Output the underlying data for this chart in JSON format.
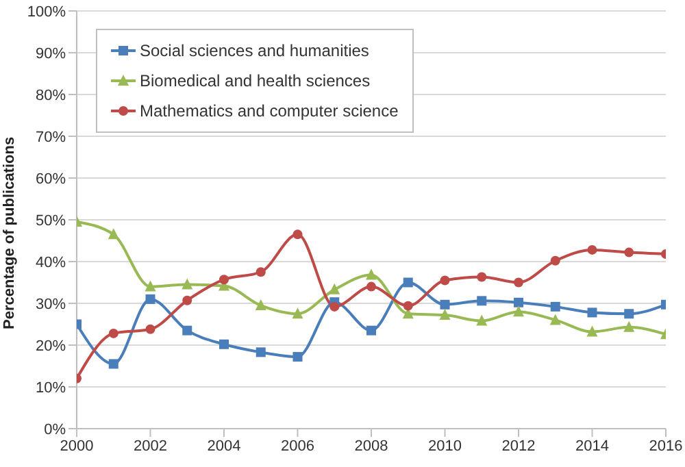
{
  "chart_data": {
    "type": "line",
    "ylabel": "Percentage of publications",
    "x": [
      2000,
      2001,
      2002,
      2003,
      2004,
      2005,
      2006,
      2007,
      2008,
      2009,
      2010,
      2011,
      2012,
      2013,
      2014,
      2015,
      2016
    ],
    "series": [
      {
        "name": "Social sciences and humanities",
        "color": "#4a7ebb",
        "marker": "square",
        "values": [
          25,
          15.5,
          31,
          23.5,
          20.2,
          18.3,
          17.2,
          30.3,
          23.5,
          35,
          29.7,
          30.6,
          30.2,
          29.2,
          27.8,
          27.5,
          29.7
        ]
      },
      {
        "name": "Biomedical and health sciences",
        "color": "#98b954",
        "marker": "triangle",
        "values": [
          49.5,
          46.5,
          34,
          34.5,
          34.2,
          29.5,
          27.5,
          33.3,
          36.8,
          27.5,
          27.2,
          25.8,
          28,
          26,
          23.2,
          24.3,
          22.6
        ]
      },
      {
        "name": "Mathematics and computer science",
        "color": "#be4b48",
        "marker": "circle",
        "values": [
          12,
          22.8,
          23.8,
          30.7,
          35.7,
          37.5,
          46.5,
          29.2,
          34,
          29.4,
          35.5,
          36.3,
          35,
          40.2,
          42.8,
          42.2,
          41.8
        ]
      }
    ],
    "xlim": [
      2000,
      2016
    ],
    "xticks": [
      2000,
      2002,
      2004,
      2006,
      2008,
      2010,
      2012,
      2014,
      2016
    ],
    "ylim": [
      0,
      100
    ],
    "yticks": [
      {
        "value": 0,
        "label": "0%"
      },
      {
        "value": 10,
        "label": "10%"
      },
      {
        "value": 20,
        "label": "20%"
      },
      {
        "value": 30,
        "label": "30%"
      },
      {
        "value": 40,
        "label": "40%"
      },
      {
        "value": 50,
        "label": "50%"
      },
      {
        "value": 60,
        "label": "60%"
      },
      {
        "value": 70,
        "label": "70%"
      },
      {
        "value": 80,
        "label": "80%"
      },
      {
        "value": 90,
        "label": "90%"
      },
      {
        "value": 100,
        "label": "100%"
      }
    ],
    "grid": "y",
    "legend": "top left",
    "line_style": "solid"
  }
}
